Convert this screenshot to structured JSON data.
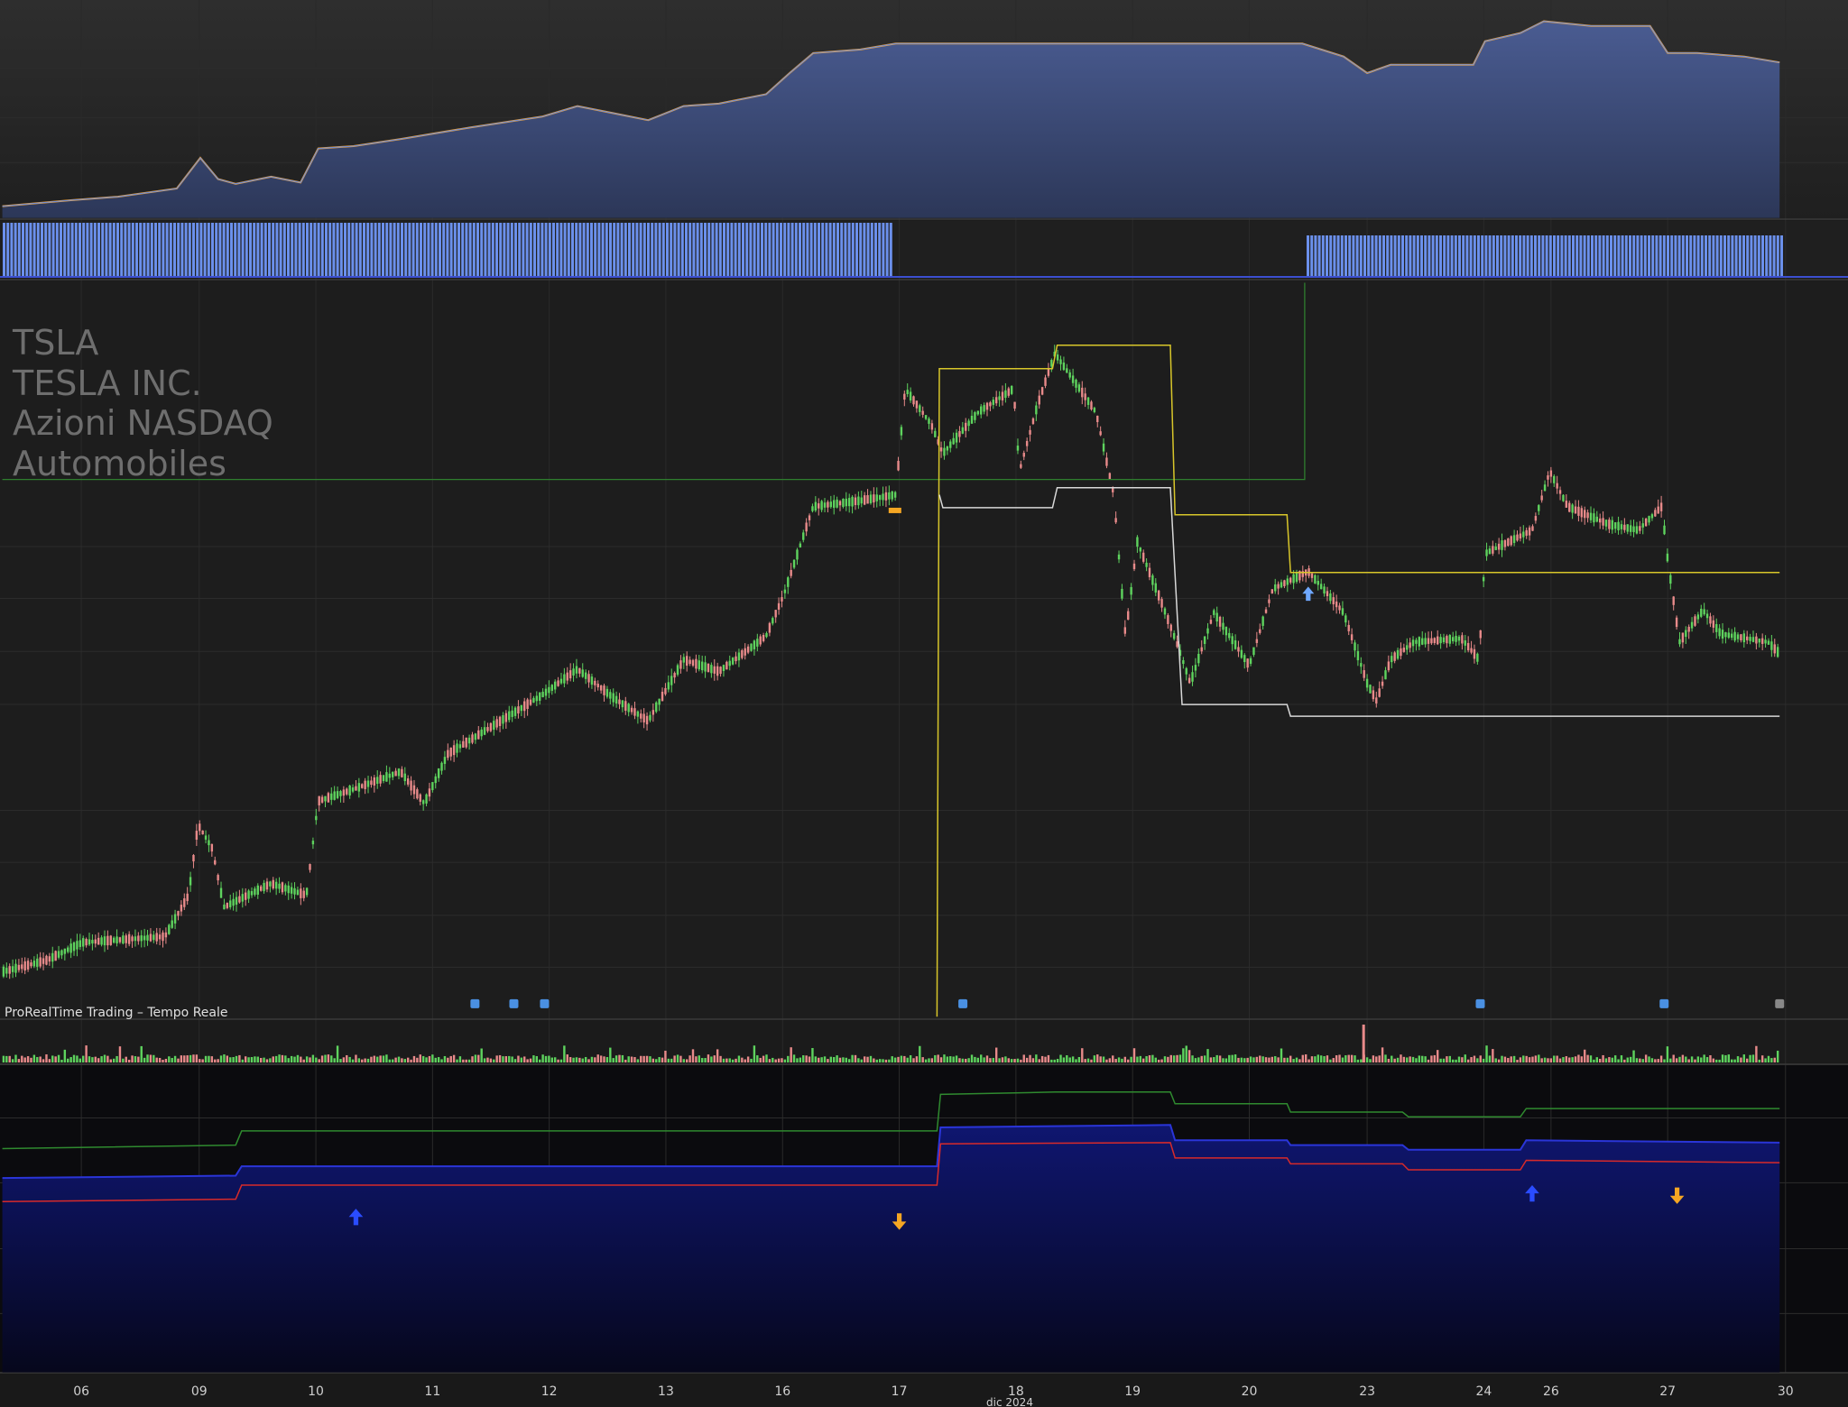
{
  "header": {
    "symbol": "TSLA",
    "name": "TESLA INC.",
    "market": "Azioni NASDAQ",
    "sector": "Automobiles"
  },
  "footer_note": "ProRealTime Trading – Tempo Reale",
  "x_axis": {
    "labels": [
      "06",
      "09",
      "10",
      "11",
      "12",
      "13",
      "16",
      "17",
      "18",
      "19",
      "20",
      "23",
      "24",
      "26",
      "27",
      "30"
    ],
    "period": "dic 2024"
  }
}
